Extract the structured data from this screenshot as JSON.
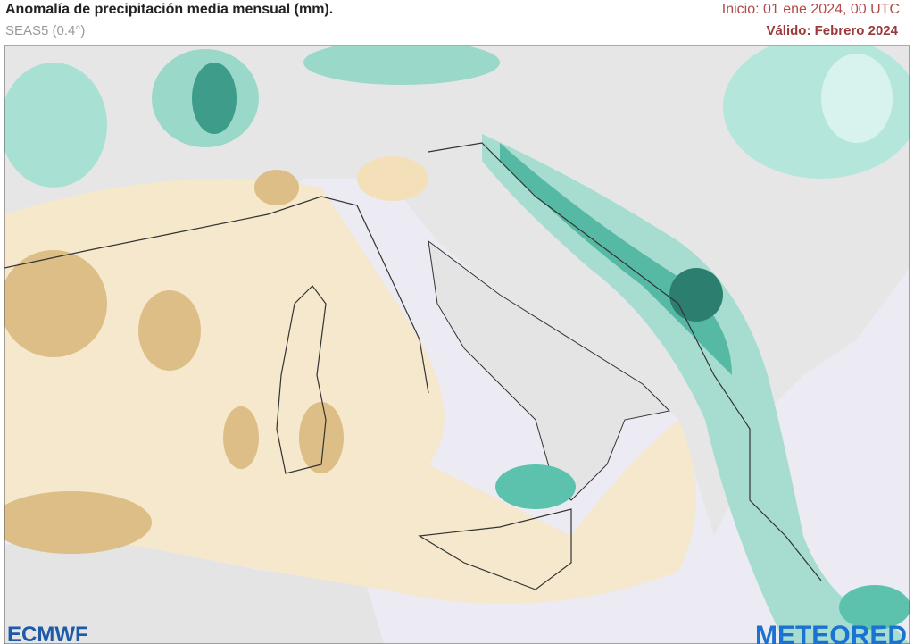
{
  "header": {
    "title": "Anomalía de precipitación media mensual (mm).",
    "model": "SEAS5 (0.4°)",
    "init": "Inicio: 01 ene 2024, 00 UTC",
    "valid": "Válido: Febrero 2024"
  },
  "logos": {
    "left": "ECMWF",
    "right": "METEORED"
  }
}
